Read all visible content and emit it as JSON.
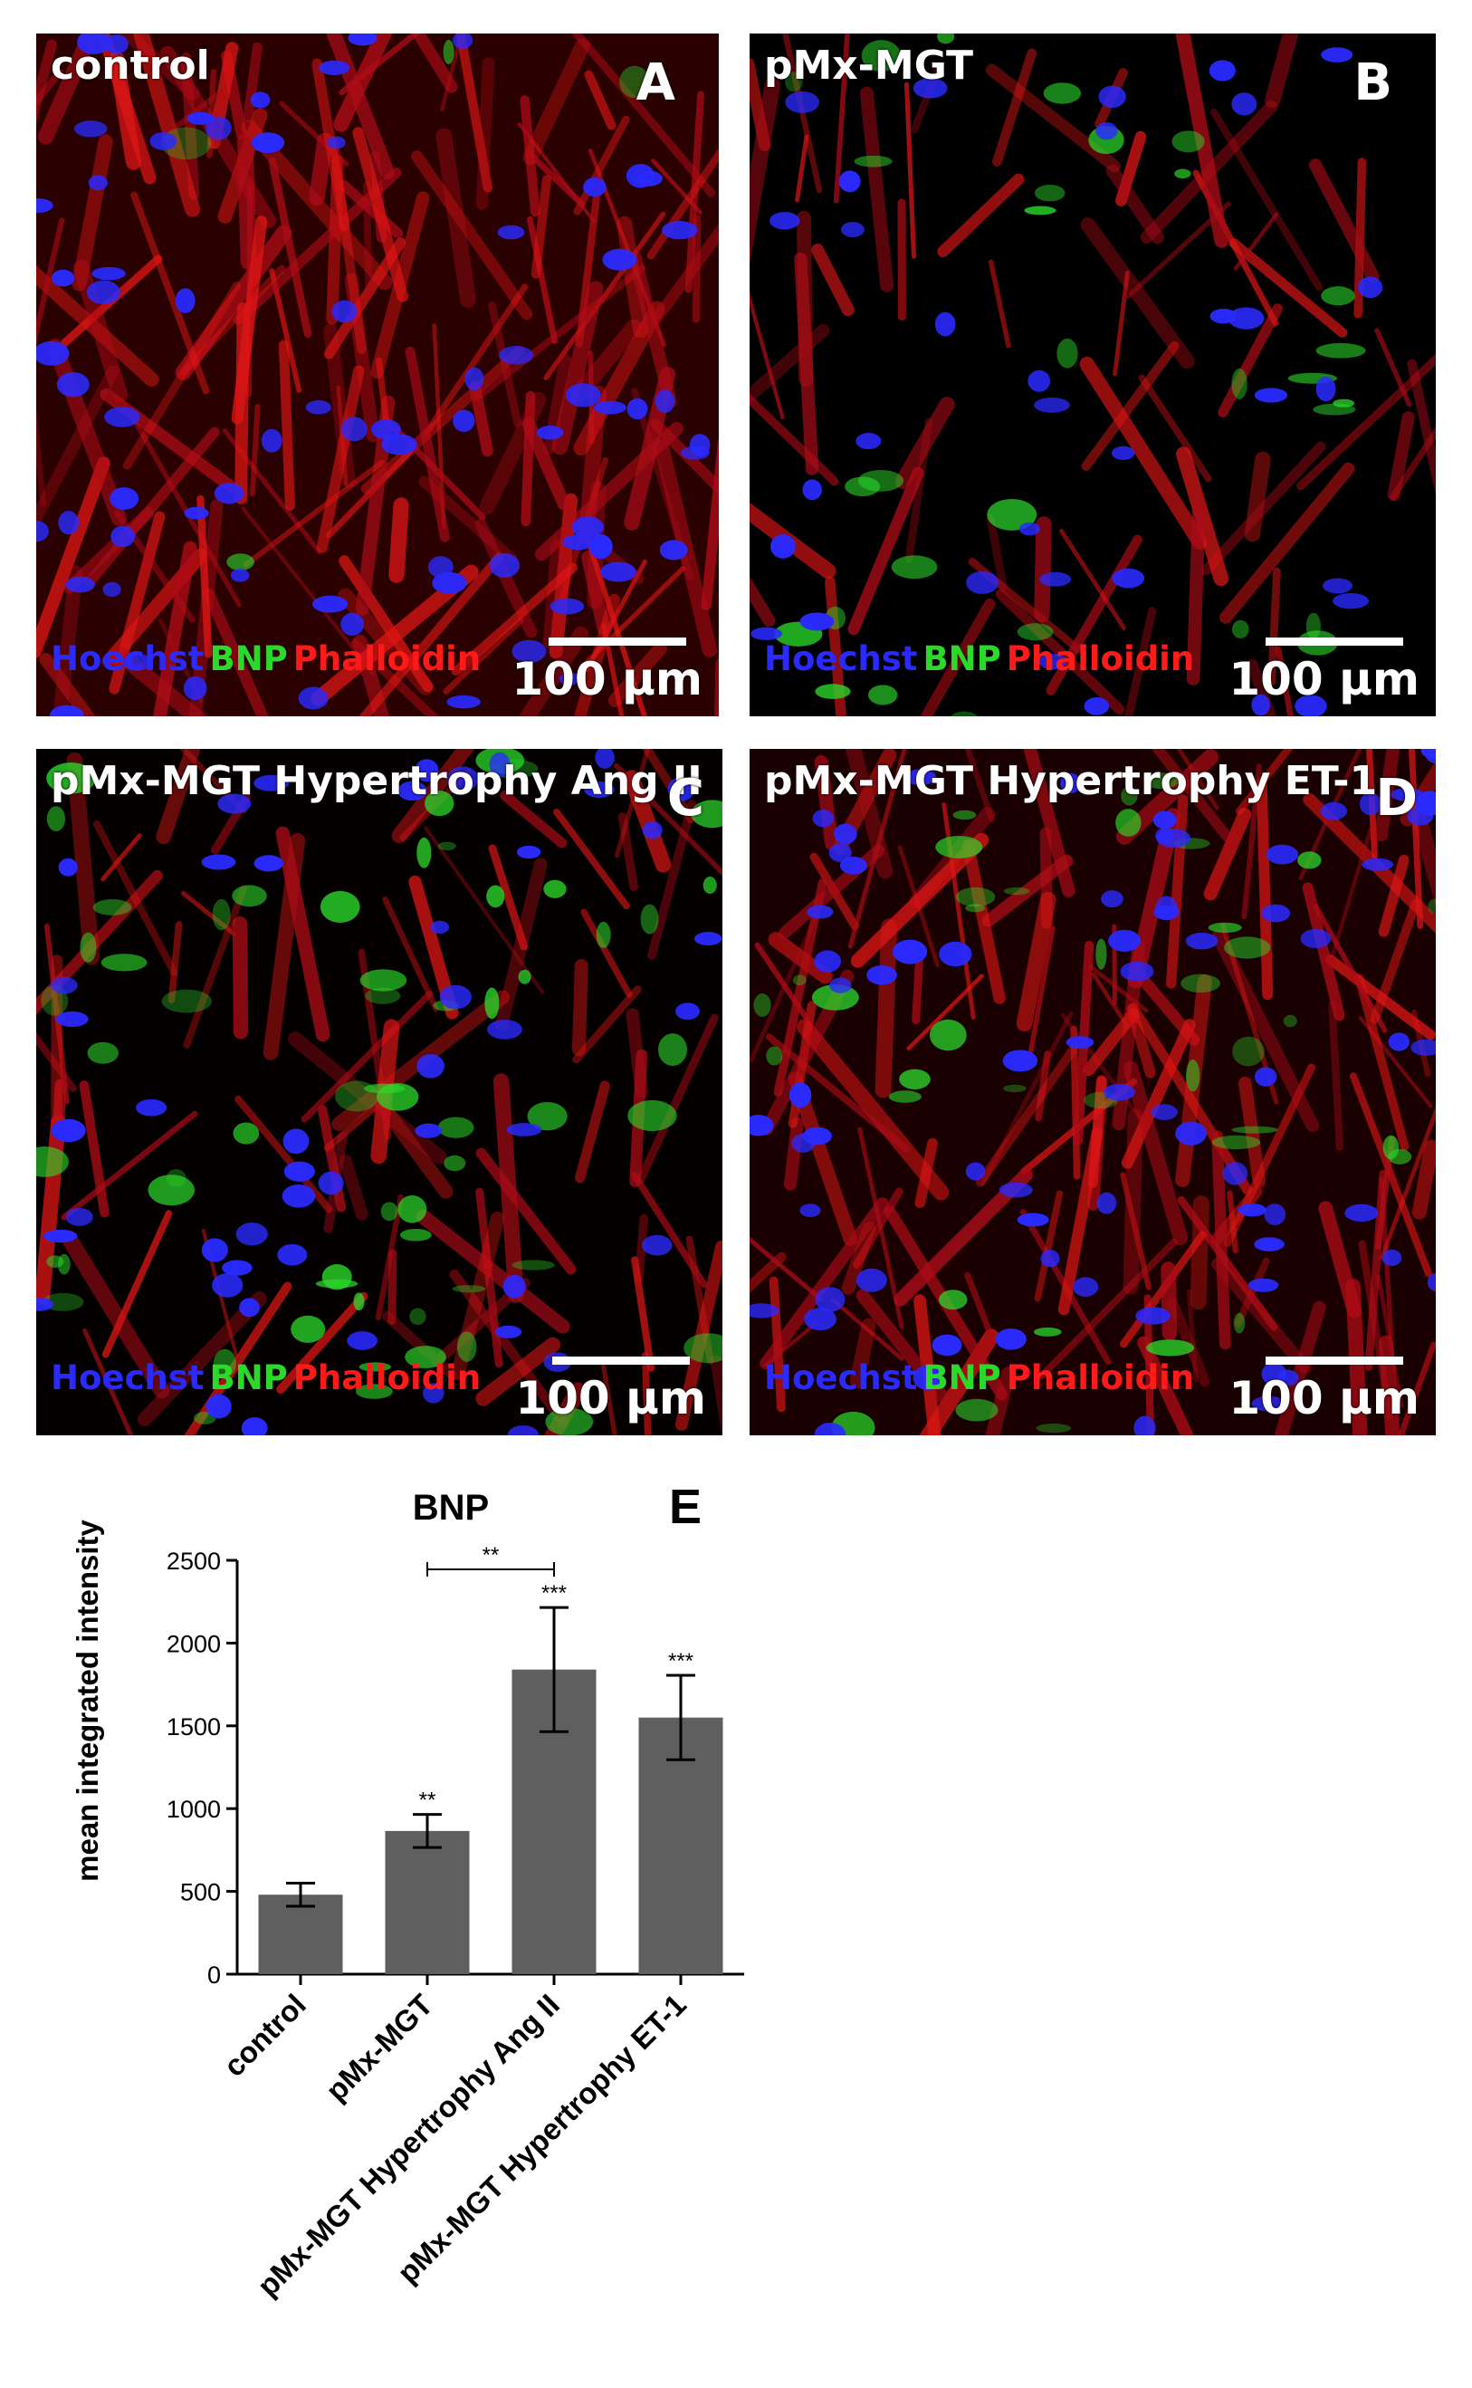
{
  "panels": [
    {
      "id": "A",
      "title": "control",
      "letter": "A",
      "stains": [
        "Hoechst",
        "BNP",
        "Phalloidin"
      ],
      "scale": "100 µm"
    },
    {
      "id": "B",
      "title": "pMx-MGT",
      "letter": "B",
      "stains": [
        "Hoechst",
        "BNP",
        "Phalloidin"
      ],
      "scale": "100 µm"
    },
    {
      "id": "C",
      "title": "pMx-MGT Hypertrophy Ang II",
      "letter": "C",
      "stains": [
        "Hoechst",
        "BNP",
        "Phalloidin"
      ],
      "scale": "100 µm"
    },
    {
      "id": "D",
      "title": "pMx-MGT Hypertrophy ET-1",
      "letter": "D",
      "stains": [
        "Hoechst",
        "BNP",
        "Phalloidin"
      ],
      "scale": "100 µm"
    }
  ],
  "colors": {
    "hoechst": "#2a2aff",
    "bnp": "#2bd92b",
    "phalloidin": "#ff1a1a",
    "bar": "#5f5f5f"
  },
  "chart_data": {
    "type": "bar",
    "title": "BNP",
    "panel_letter": "E",
    "ylabel": "mean integrated intensity",
    "xlabel": "",
    "categories": [
      "control",
      "pMx-MGT",
      "pMx-MGT Hypertrophy Ang II",
      "pMx-MGT Hypertrophy ET-1"
    ],
    "values": [
      480,
      865,
      1840,
      1550
    ],
    "errors": [
      70,
      100,
      375,
      255
    ],
    "significance": [
      "",
      "**",
      "***",
      "***"
    ],
    "bracket": {
      "from": 1,
      "to": 2,
      "label": "**"
    },
    "ylim": [
      0,
      2500
    ],
    "yticks": [
      0,
      500,
      1000,
      1500,
      2000,
      2500
    ],
    "grid": false,
    "legend": "none"
  }
}
